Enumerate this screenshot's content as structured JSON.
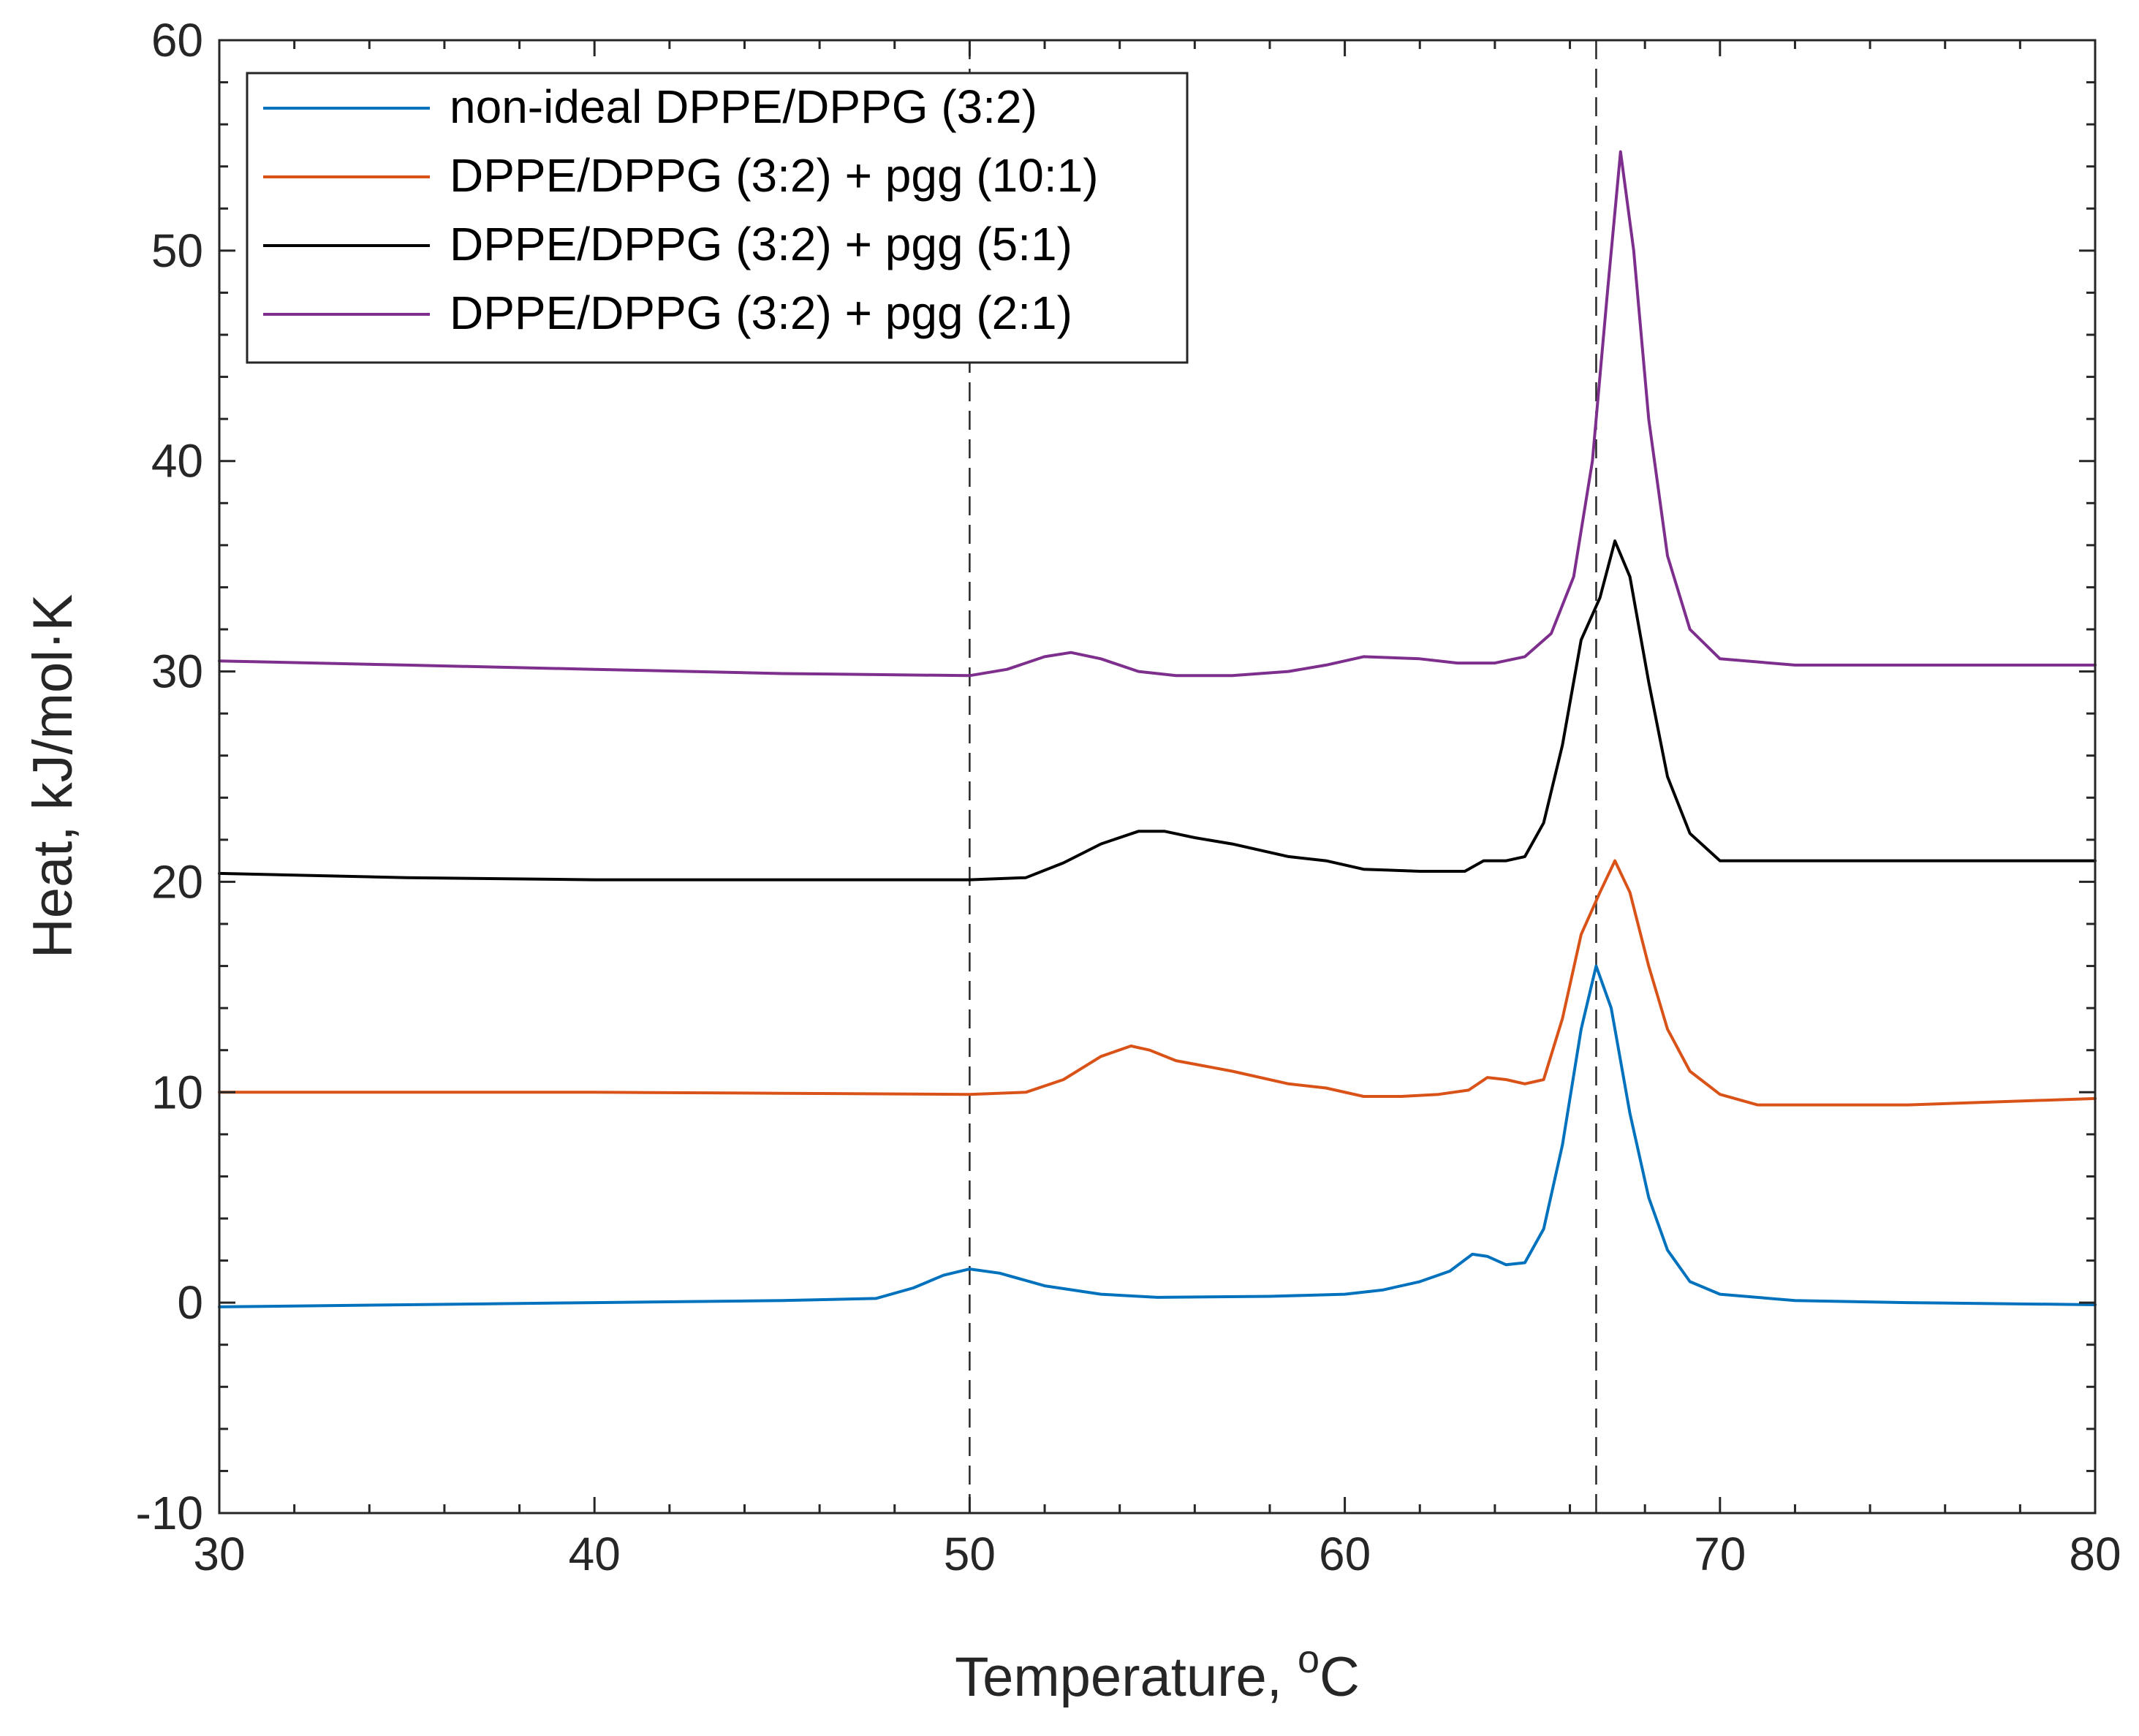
{
  "chart_data": {
    "type": "line",
    "title": "",
    "xlabel": "Temperature, ",
    "xlabel_sup": "o",
    "xlabel_unit": "C",
    "ylabel": "Heat, kJ/mol·K",
    "xlim": [
      30,
      80
    ],
    "ylim": [
      -10,
      60
    ],
    "xticks": [
      30,
      40,
      50,
      60,
      70,
      80
    ],
    "xtick_labels": [
      "30",
      "40",
      "50",
      "60",
      "70",
      "80"
    ],
    "yticks": [
      -10,
      0,
      10,
      20,
      30,
      40,
      50,
      60
    ],
    "ytick_labels": [
      "-10",
      "0",
      "10",
      "20",
      "30",
      "40",
      "50",
      "60"
    ],
    "grid": false,
    "legend_position": "top-left",
    "reference_lines_x": [
      50,
      66.7
    ],
    "series": [
      {
        "name": "non-ideal DPPE/DPPG (3:2)",
        "color": "#0072BD",
        "points": [
          [
            30,
            -0.2
          ],
          [
            35,
            -0.1
          ],
          [
            40,
            0.0
          ],
          [
            45,
            0.1
          ],
          [
            47.5,
            0.2
          ],
          [
            48.5,
            0.7
          ],
          [
            49.3,
            1.3
          ],
          [
            50,
            1.6
          ],
          [
            50.8,
            1.4
          ],
          [
            52,
            0.8
          ],
          [
            53.5,
            0.4
          ],
          [
            55,
            0.25
          ],
          [
            58,
            0.3
          ],
          [
            60,
            0.4
          ],
          [
            61,
            0.6
          ],
          [
            62,
            1.0
          ],
          [
            62.8,
            1.5
          ],
          [
            63.4,
            2.3
          ],
          [
            63.8,
            2.2
          ],
          [
            64.3,
            1.8
          ],
          [
            64.8,
            1.9
          ],
          [
            65.3,
            3.5
          ],
          [
            65.8,
            7.5
          ],
          [
            66.3,
            13.0
          ],
          [
            66.7,
            16.0
          ],
          [
            67.1,
            14.0
          ],
          [
            67.6,
            9.0
          ],
          [
            68.1,
            5.0
          ],
          [
            68.6,
            2.5
          ],
          [
            69.2,
            1.0
          ],
          [
            70,
            0.4
          ],
          [
            72,
            0.1
          ],
          [
            75,
            0.0
          ],
          [
            80,
            -0.1
          ]
        ]
      },
      {
        "name": "DPPE/DPPG (3:2) + pgg (10:1)",
        "color": "#D95319",
        "points": [
          [
            30,
            10.0
          ],
          [
            35,
            10.0
          ],
          [
            40,
            10.0
          ],
          [
            45,
            9.95
          ],
          [
            50,
            9.9
          ],
          [
            51.5,
            10.0
          ],
          [
            52.5,
            10.6
          ],
          [
            53.5,
            11.7
          ],
          [
            54.3,
            12.2
          ],
          [
            54.8,
            12.0
          ],
          [
            55.5,
            11.5
          ],
          [
            57,
            11.0
          ],
          [
            58.5,
            10.4
          ],
          [
            59.5,
            10.2
          ],
          [
            60.5,
            9.8
          ],
          [
            61.5,
            9.8
          ],
          [
            62.5,
            9.9
          ],
          [
            63.3,
            10.1
          ],
          [
            63.8,
            10.7
          ],
          [
            64.3,
            10.6
          ],
          [
            64.8,
            10.4
          ],
          [
            65.3,
            10.6
          ],
          [
            65.8,
            13.5
          ],
          [
            66.3,
            17.5
          ],
          [
            66.8,
            19.5
          ],
          [
            67.2,
            21.0
          ],
          [
            67.6,
            19.5
          ],
          [
            68.1,
            16.0
          ],
          [
            68.6,
            13.0
          ],
          [
            69.2,
            11.0
          ],
          [
            70,
            9.9
          ],
          [
            71,
            9.4
          ],
          [
            75,
            9.4
          ],
          [
            80,
            9.7
          ]
        ]
      },
      {
        "name": "DPPE/DPPG (3:2) + pgg (5:1)",
        "color": "#000000",
        "points": [
          [
            30,
            20.4
          ],
          [
            35,
            20.2
          ],
          [
            40,
            20.1
          ],
          [
            45,
            20.1
          ],
          [
            50,
            20.1
          ],
          [
            51.5,
            20.2
          ],
          [
            52.5,
            20.9
          ],
          [
            53.5,
            21.8
          ],
          [
            54.5,
            22.4
          ],
          [
            55.2,
            22.4
          ],
          [
            56,
            22.1
          ],
          [
            57,
            21.8
          ],
          [
            58.5,
            21.2
          ],
          [
            59.5,
            21.0
          ],
          [
            60.5,
            20.6
          ],
          [
            62,
            20.5
          ],
          [
            63.2,
            20.5
          ],
          [
            63.7,
            21.0
          ],
          [
            64.3,
            21.0
          ],
          [
            64.8,
            21.2
          ],
          [
            65.3,
            22.8
          ],
          [
            65.8,
            26.5
          ],
          [
            66.3,
            31.5
          ],
          [
            66.8,
            33.5
          ],
          [
            67.2,
            36.2
          ],
          [
            67.6,
            34.5
          ],
          [
            68.1,
            29.5
          ],
          [
            68.6,
            25.0
          ],
          [
            69.2,
            22.3
          ],
          [
            70,
            21.0
          ],
          [
            75,
            21.0
          ],
          [
            80,
            21.0
          ]
        ]
      },
      {
        "name": "DPPE/DPPG (3:2) + pgg (2:1)",
        "color": "#7E2F8E",
        "points": [
          [
            30,
            30.5
          ],
          [
            35,
            30.3
          ],
          [
            40,
            30.1
          ],
          [
            45,
            29.9
          ],
          [
            50,
            29.8
          ],
          [
            51,
            30.1
          ],
          [
            52,
            30.7
          ],
          [
            52.7,
            30.9
          ],
          [
            53.5,
            30.6
          ],
          [
            54.5,
            30.0
          ],
          [
            55.5,
            29.8
          ],
          [
            57,
            29.8
          ],
          [
            58.5,
            30.0
          ],
          [
            59.5,
            30.3
          ],
          [
            60.5,
            30.7
          ],
          [
            62,
            30.6
          ],
          [
            63,
            30.4
          ],
          [
            64,
            30.4
          ],
          [
            64.8,
            30.7
          ],
          [
            65.5,
            31.8
          ],
          [
            66.1,
            34.5
          ],
          [
            66.6,
            40.0
          ],
          [
            67.0,
            48.0
          ],
          [
            67.35,
            54.7
          ],
          [
            67.7,
            50.0
          ],
          [
            68.1,
            42.0
          ],
          [
            68.6,
            35.5
          ],
          [
            69.2,
            32.0
          ],
          [
            70,
            30.6
          ],
          [
            72,
            30.3
          ],
          [
            80,
            30.3
          ]
        ]
      }
    ]
  }
}
